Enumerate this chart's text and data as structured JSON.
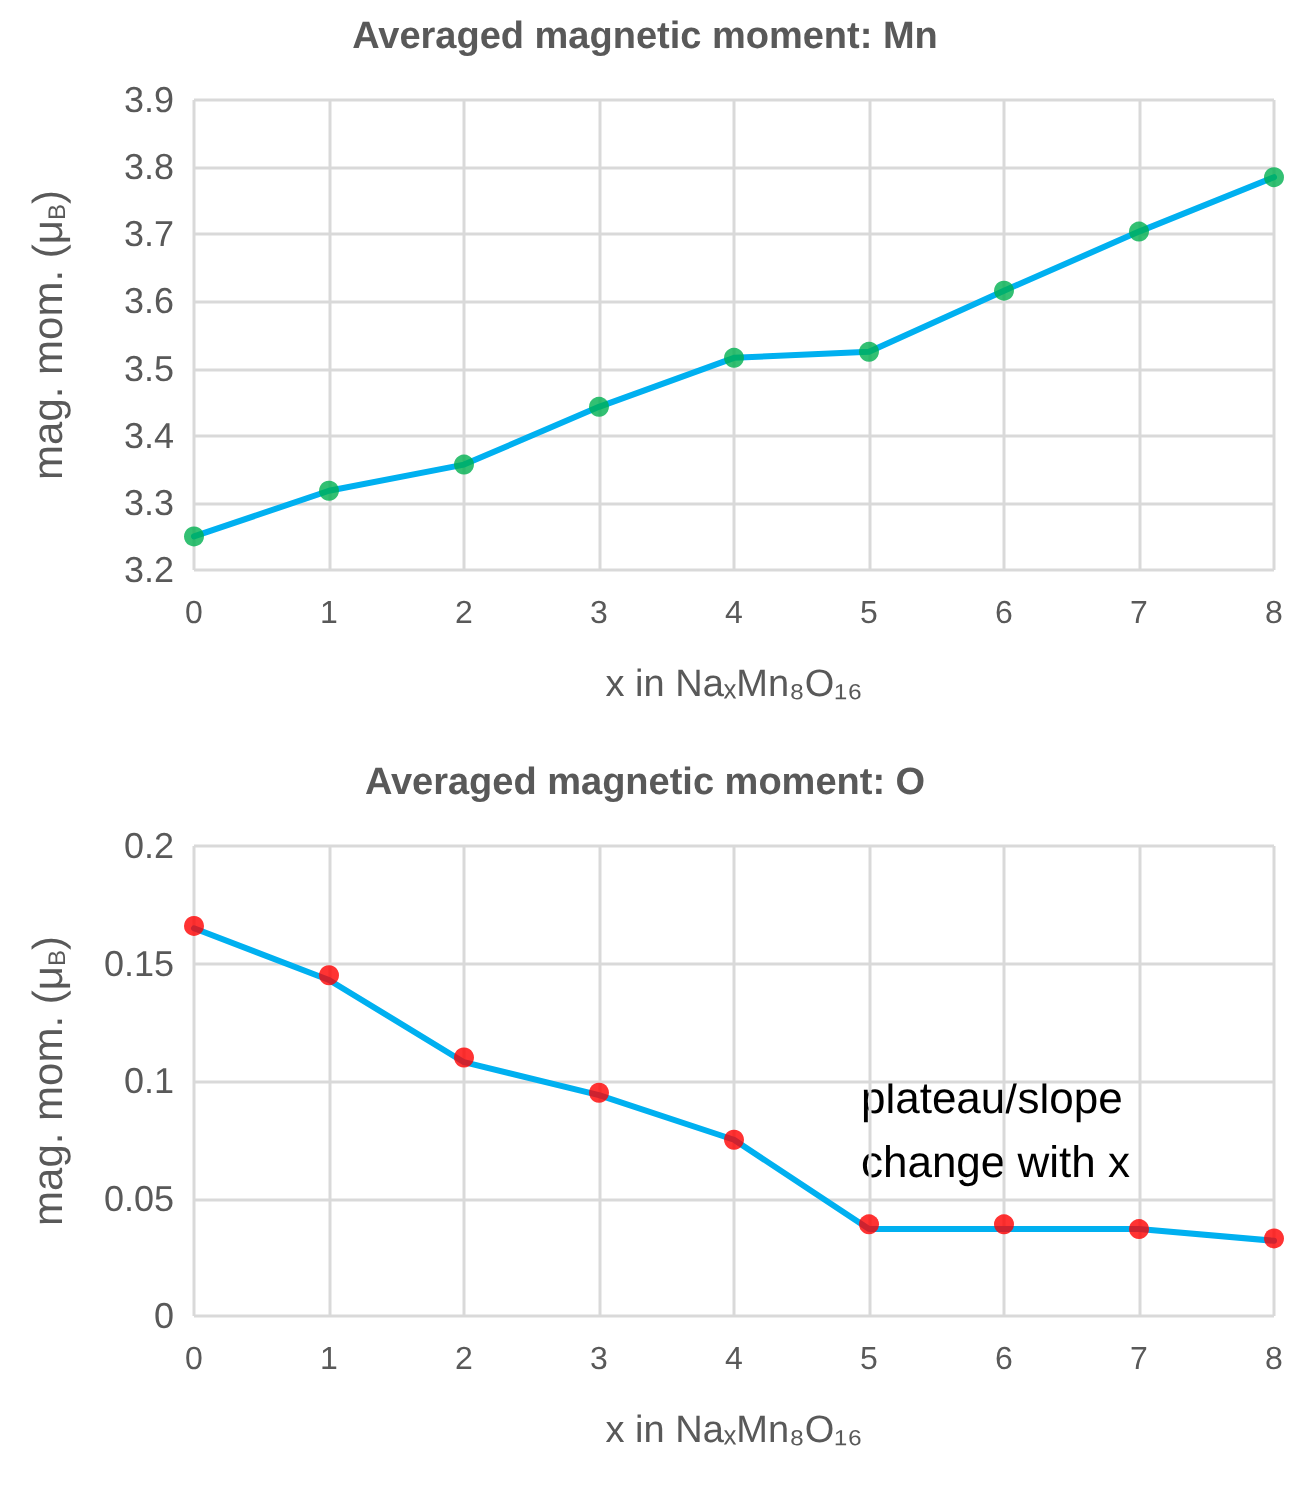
{
  "chart_data": [
    {
      "type": "line",
      "title": "Averaged magnetic moment: Mn",
      "xlabel": "x in NaₓMn₈O₁₆",
      "ylabel": "mag. mom. (μ$_{B}$)",
      "x": [
        0,
        1,
        2,
        3,
        4,
        5,
        6,
        7,
        8
      ],
      "series": [
        {
          "color": "#00b0f0",
          "marker": "none",
          "values": [
            3.25,
            3.318,
            3.357,
            3.443,
            3.516,
            3.525,
            3.616,
            3.704,
            3.785
          ]
        },
        {
          "type": "scatter",
          "color": "#00b050",
          "marker": "circle",
          "values": [
            3.25,
            3.318,
            3.357,
            3.443,
            3.516,
            3.525,
            3.616,
            3.704,
            3.785
          ]
        }
      ],
      "xlim": [
        0,
        8
      ],
      "xticks": [
        0,
        1,
        2,
        3,
        4,
        5,
        6,
        7,
        8
      ],
      "ylim": [
        3.2,
        3.9
      ],
      "yticks": [
        3.2,
        3.3,
        3.4,
        3.5,
        3.6,
        3.7,
        3.8,
        3.9
      ],
      "grid": true
    },
    {
      "type": "line",
      "title": "Averaged magnetic moment: O",
      "xlabel": "x in NaₓMn₈O₁₆",
      "ylabel": "mag. mom. (μ$_{B}$)",
      "x": [
        0,
        1,
        2,
        3,
        4,
        5,
        6,
        7,
        8
      ],
      "series": [
        {
          "color": "#00b0f0",
          "marker": "none",
          "values": [
            0.165,
            0.143,
            0.108,
            0.094,
            0.075,
            0.037,
            0.037,
            0.037,
            0.032
          ]
        },
        {
          "type": "scatter",
          "color": "#ff0000",
          "marker": "circle",
          "values": [
            0.166,
            0.145,
            0.11,
            0.095,
            0.075,
            0.039,
            0.039,
            0.037,
            0.033
          ]
        }
      ],
      "annotations": [
        "plateau/slope\nchange with x"
      ],
      "xlim": [
        0,
        8
      ],
      "xticks": [
        0,
        1,
        2,
        3,
        4,
        5,
        6,
        7,
        8
      ],
      "ylim": [
        0,
        0.2
      ],
      "yticks": [
        0,
        0.05,
        0.1,
        0.15,
        0.2
      ],
      "grid": true
    }
  ]
}
